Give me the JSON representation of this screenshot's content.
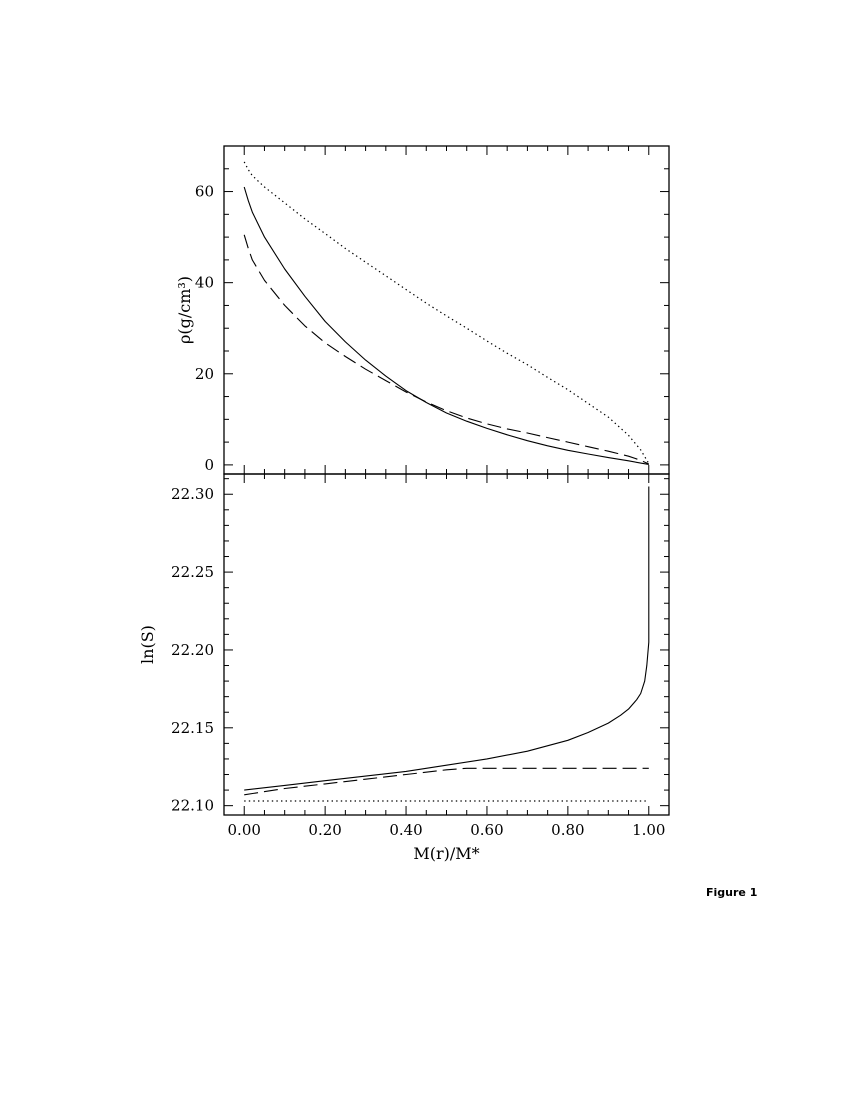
{
  "figure_caption": "Figure 1",
  "chart_data": [
    {
      "type": "line",
      "panel": "top",
      "ylabel": "ρ(g/cm³)",
      "xlabel": "",
      "xlim": [
        -0.05,
        1.05
      ],
      "ylim": [
        -2,
        70
      ],
      "yticks": [
        0,
        20,
        40,
        60
      ],
      "ytick_labels": [
        "0",
        "20",
        "40",
        "60"
      ],
      "y_minor_step": 5,
      "grid": false,
      "series": [
        {
          "style": "dotted",
          "x": [
            0.0,
            0.01,
            0.02,
            0.05,
            0.1,
            0.15,
            0.2,
            0.25,
            0.3,
            0.35,
            0.4,
            0.45,
            0.5,
            0.55,
            0.6,
            0.65,
            0.7,
            0.75,
            0.8,
            0.85,
            0.9,
            0.95,
            0.98,
            1.0
          ],
          "y": [
            66.5,
            64.8,
            63.5,
            61.0,
            57.5,
            54.0,
            50.8,
            47.5,
            44.5,
            41.5,
            38.5,
            35.5,
            32.7,
            30.0,
            27.2,
            24.5,
            22.0,
            19.2,
            16.5,
            13.5,
            10.5,
            6.5,
            3.3,
            0.3
          ]
        },
        {
          "style": "solid",
          "x": [
            0.0,
            0.01,
            0.02,
            0.05,
            0.1,
            0.15,
            0.2,
            0.25,
            0.3,
            0.35,
            0.4,
            0.45,
            0.5,
            0.55,
            0.6,
            0.65,
            0.7,
            0.75,
            0.8,
            0.85,
            0.9,
            0.95,
            0.98,
            1.0
          ],
          "y": [
            61.0,
            58.0,
            55.5,
            50.0,
            43.0,
            37.0,
            31.5,
            27.0,
            23.0,
            19.5,
            16.3,
            13.7,
            11.4,
            9.6,
            8.0,
            6.6,
            5.3,
            4.2,
            3.2,
            2.4,
            1.6,
            0.9,
            0.4,
            0.1
          ]
        },
        {
          "style": "dashed",
          "x": [
            0.0,
            0.01,
            0.02,
            0.05,
            0.1,
            0.15,
            0.2,
            0.25,
            0.3,
            0.35,
            0.4,
            0.45,
            0.5,
            0.55,
            0.6,
            0.65,
            0.7,
            0.75,
            0.8,
            0.85,
            0.9,
            0.95,
            0.98,
            1.0
          ],
          "y": [
            50.5,
            47.5,
            45.0,
            40.5,
            35.0,
            30.5,
            26.8,
            23.8,
            21.0,
            18.5,
            16.0,
            13.8,
            11.9,
            10.3,
            9.0,
            7.9,
            7.0,
            6.0,
            5.0,
            4.0,
            3.0,
            1.9,
            1.0,
            0.2
          ]
        }
      ]
    },
    {
      "type": "line",
      "panel": "bottom",
      "ylabel": "ln(S)",
      "xlabel": "M(r)/M*",
      "xlim": [
        -0.05,
        1.05
      ],
      "ylim": [
        22.094,
        22.313
      ],
      "yticks": [
        22.1,
        22.15,
        22.2,
        22.25,
        22.3
      ],
      "ytick_labels": [
        "22.10",
        "22.15",
        "22.20",
        "22.25",
        "22.30"
      ],
      "y_minor_step": 0.01,
      "xticks": [
        0.0,
        0.2,
        0.4,
        0.6,
        0.8,
        1.0
      ],
      "xtick_labels": [
        "0.00",
        "0.20",
        "0.40",
        "0.60",
        "0.80",
        "1.00"
      ],
      "x_minor_step": 0.05,
      "grid": false,
      "series": [
        {
          "style": "dotted",
          "x": [
            0.0,
            1.0
          ],
          "y": [
            22.103,
            22.103
          ]
        },
        {
          "style": "solid",
          "x": [
            0.0,
            0.1,
            0.2,
            0.3,
            0.4,
            0.5,
            0.6,
            0.7,
            0.8,
            0.85,
            0.9,
            0.93,
            0.95,
            0.97,
            0.98,
            0.99,
            0.995,
            1.0,
            1.0
          ],
          "y": [
            22.11,
            22.113,
            22.116,
            22.119,
            22.122,
            22.126,
            22.13,
            22.135,
            22.142,
            22.147,
            22.153,
            22.158,
            22.162,
            22.168,
            22.172,
            22.18,
            22.19,
            22.205,
            22.305
          ]
        },
        {
          "style": "dashed",
          "x": [
            0.0,
            0.1,
            0.2,
            0.3,
            0.4,
            0.5,
            0.55,
            0.6,
            0.7,
            0.8,
            0.9,
            1.0
          ],
          "y": [
            22.107,
            22.111,
            22.114,
            22.117,
            22.12,
            22.123,
            22.124,
            22.124,
            22.124,
            22.124,
            22.124,
            22.124
          ]
        }
      ]
    }
  ]
}
